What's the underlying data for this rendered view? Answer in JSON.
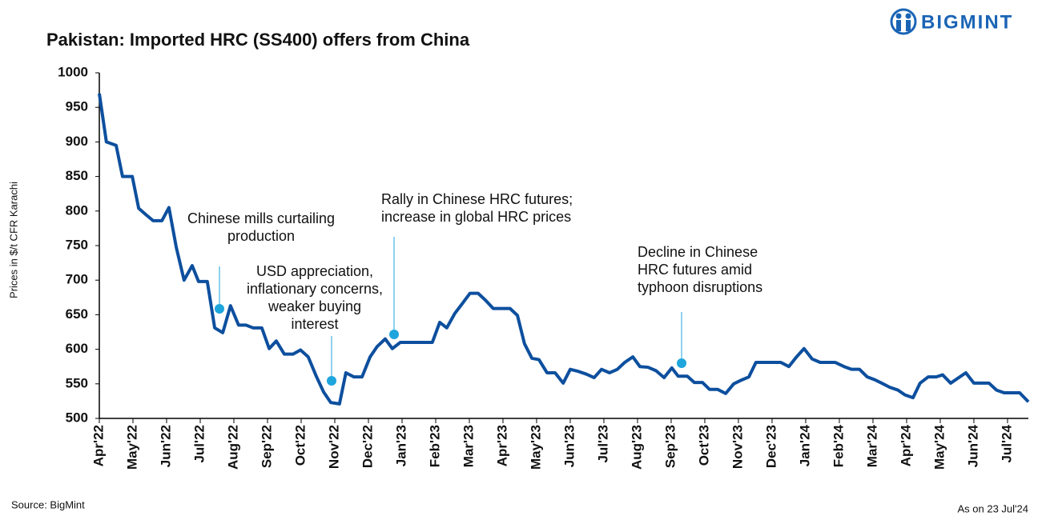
{
  "chart_data": {
    "type": "line",
    "title": "Pakistan: Imported HRC (SS400) offers from China",
    "brand": "BIGMINT",
    "y_label": "Prices in $/t CFR Karachi",
    "source": "Source: BigMint",
    "as_on": "As on 23 Jul'24",
    "xlim": [
      0,
      27.62
    ],
    "xticks": [
      {
        "value": 0,
        "label": "Apr'22"
      },
      {
        "value": 1,
        "label": "May'22"
      },
      {
        "value": 2,
        "label": "Jun'22"
      },
      {
        "value": 3,
        "label": "Jul'22"
      },
      {
        "value": 4,
        "label": "Aug'22"
      },
      {
        "value": 5,
        "label": "Sep'22"
      },
      {
        "value": 6,
        "label": "Oct'22"
      },
      {
        "value": 7,
        "label": "Nov'22"
      },
      {
        "value": 8,
        "label": "Dec'22"
      },
      {
        "value": 9,
        "label": "Jan'23"
      },
      {
        "value": 10,
        "label": "Feb'23"
      },
      {
        "value": 11,
        "label": "Mar'23"
      },
      {
        "value": 12,
        "label": "Apr'23"
      },
      {
        "value": 13,
        "label": "May'23"
      },
      {
        "value": 14,
        "label": "Jun'23"
      },
      {
        "value": 15,
        "label": "Jul'23"
      },
      {
        "value": 16,
        "label": "Aug'23"
      },
      {
        "value": 17,
        "label": "Sep'23"
      },
      {
        "value": 18,
        "label": "Oct'23"
      },
      {
        "value": 19,
        "label": "Nov'23"
      },
      {
        "value": 20,
        "label": "Dec'23"
      },
      {
        "value": 21,
        "label": "Jan'24"
      },
      {
        "value": 22,
        "label": "Feb'24"
      },
      {
        "value": 23,
        "label": "Mar'24"
      },
      {
        "value": 24,
        "label": "Apr'24"
      },
      {
        "value": 25,
        "label": "May'24"
      },
      {
        "value": 26,
        "label": "Jun'24"
      },
      {
        "value": 27,
        "label": "Jul'24"
      }
    ],
    "ylim": [
      500,
      1000
    ],
    "yticks": [
      500,
      550,
      600,
      650,
      700,
      750,
      800,
      850,
      900,
      950,
      1000
    ],
    "x": [
      0,
      0.21,
      0.5,
      0.69,
      0.98,
      1.17,
      1.38,
      1.6,
      1.86,
      2.07,
      2.29,
      2.52,
      2.76,
      2.95,
      3.21,
      3.43,
      3.67,
      3.9,
      4.14,
      4.36,
      4.57,
      4.83,
      5.05,
      5.26,
      5.5,
      5.76,
      5.98,
      6.21,
      6.45,
      6.67,
      6.88,
      7.14,
      7.33,
      7.57,
      7.81,
      8.05,
      8.26,
      8.5,
      8.71,
      8.95,
      9.19,
      9.43,
      9.9,
      10.12,
      10.33,
      10.57,
      10.79,
      11.02,
      11.26,
      11.48,
      11.71,
      12.21,
      12.43,
      12.64,
      12.86,
      13.07,
      13.31,
      13.55,
      13.79,
      14.0,
      14.24,
      14.48,
      14.71,
      14.93,
      15.17,
      15.4,
      15.62,
      15.86,
      16.07,
      16.31,
      16.55,
      16.79,
      17.02,
      17.21,
      17.48,
      17.69,
      17.93,
      18.14,
      18.38,
      18.62,
      18.86,
      19.07,
      19.31,
      19.52,
      20.26,
      20.5,
      20.71,
      20.95,
      21.19,
      21.43,
      21.88,
      22.14,
      22.36,
      22.6,
      22.83,
      23.05,
      23.26,
      23.5,
      23.74,
      23.95,
      24.19,
      24.4,
      24.64,
      24.88,
      25.07,
      25.31,
      25.52,
      25.76,
      26.0,
      26.45,
      26.67,
      26.9,
      27.36,
      27.62
    ],
    "series": [
      {
        "color": "#0d4f9e",
        "values": [
          970,
          900,
          895,
          850,
          850,
          804,
          795,
          786,
          786,
          805,
          747,
          700,
          721,
          698,
          698,
          631,
          624,
          663,
          635,
          635,
          631,
          631,
          601,
          612,
          593,
          593,
          599,
          589,
          561,
          538,
          523,
          521,
          566,
          560,
          560,
          589,
          604,
          615,
          601,
          610,
          610,
          610,
          610,
          639,
          631,
          652,
          666,
          681,
          681,
          671,
          659,
          659,
          649,
          608,
          587,
          585,
          566,
          566,
          551,
          571,
          568,
          564,
          559,
          571,
          566,
          571,
          581,
          589,
          575,
          574,
          569,
          559,
          573,
          561,
          561,
          552,
          552,
          542,
          542,
          536,
          550,
          555,
          560,
          581,
          581,
          575,
          588,
          601,
          586,
          581,
          581,
          575,
          571,
          571,
          560,
          556,
          551,
          545,
          541,
          534,
          530,
          551,
          560,
          560,
          563,
          551,
          558,
          566,
          551,
          551,
          541,
          537,
          537,
          524
        ]
      }
    ],
    "annotations": [
      {
        "text": [
          "Chinese mills curtailing",
          "production"
        ]
      },
      {
        "text": [
          "USD appreciation,",
          "inflationary concerns,",
          "weaker buying",
          "interest"
        ]
      },
      {
        "text": [
          "Rally in Chinese HRC futures;",
          "increase in global HRC prices"
        ]
      },
      {
        "text": [
          "Decline in Chinese",
          "HRC futures amid",
          "typhoon disruptions"
        ]
      }
    ]
  }
}
